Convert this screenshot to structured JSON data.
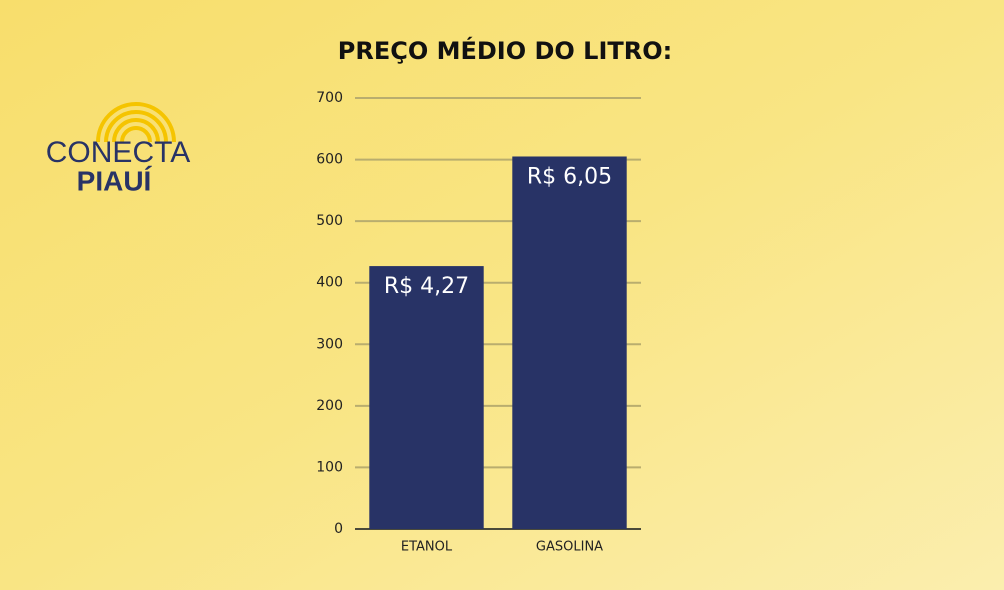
{
  "logo": {
    "line1": "CONECTA",
    "line2": "PIAUÍ"
  },
  "chart_data": {
    "type": "bar",
    "title": "PREÇO MÉDIO DO LITRO:",
    "categories": [
      "ETANOL",
      "GASOLINA"
    ],
    "values": [
      427,
      605
    ],
    "value_labels": [
      "R$ 4,27",
      "R$ 6,05"
    ],
    "color": "#283366",
    "ylim": [
      0,
      700
    ],
    "yticks": [
      0,
      100,
      200,
      300,
      400,
      500,
      600,
      700
    ],
    "grid": true
  }
}
